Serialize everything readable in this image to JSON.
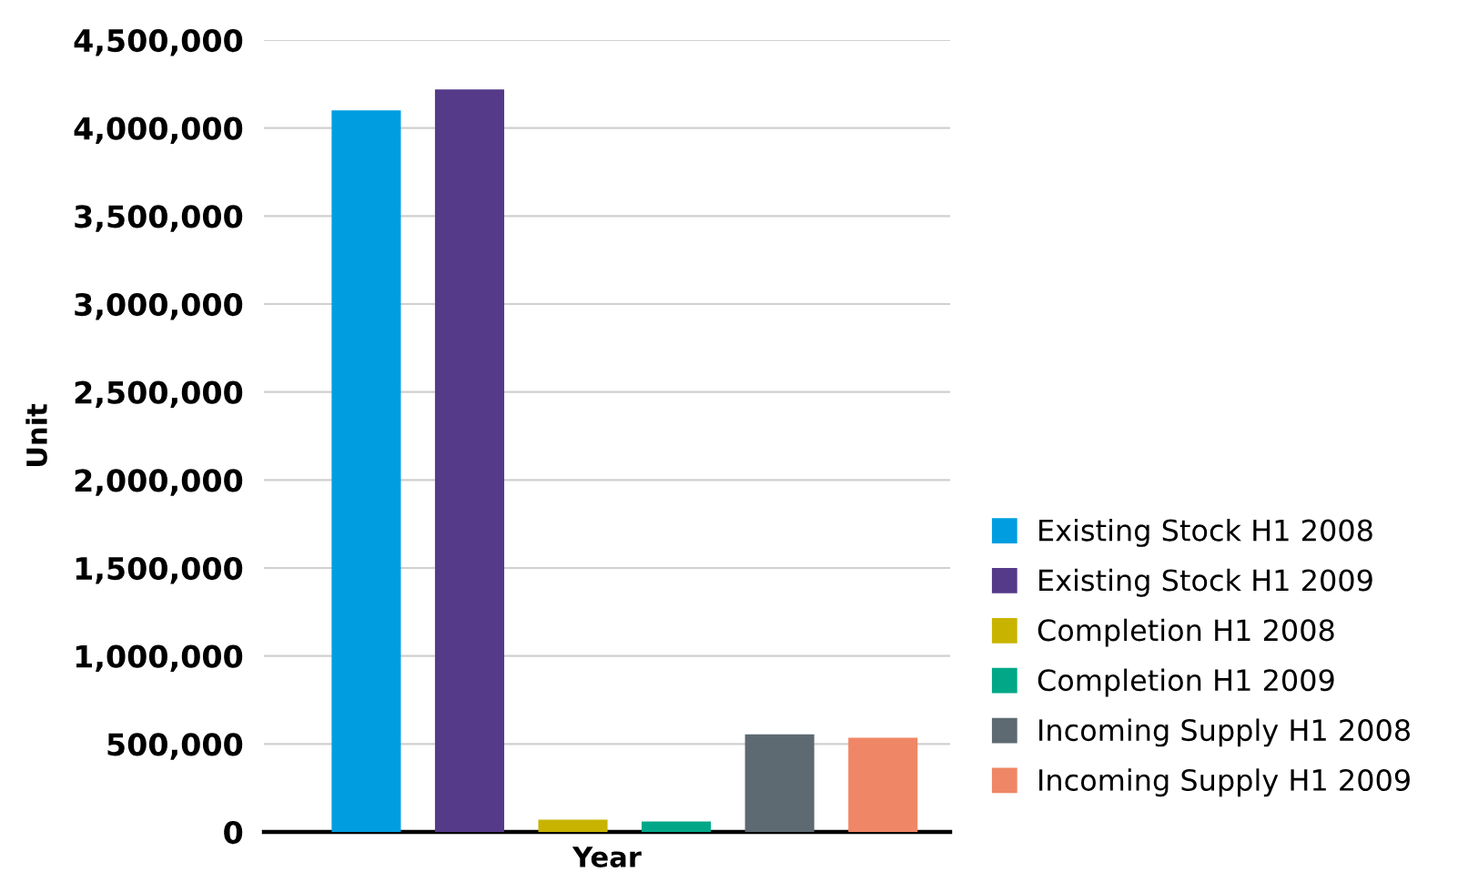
{
  "chart_data": {
    "type": "bar",
    "xlabel": "Year",
    "ylabel": "Unit",
    "categories": [
      null
    ],
    "series": [
      {
        "name": "Existing Stock H1 2008",
        "color": "#009ee0",
        "values": [
          4100000
        ]
      },
      {
        "name": "Existing Stock H1 2009",
        "color": "#553a8a",
        "values": [
          4220000
        ]
      },
      {
        "name": "Completion H1 2008",
        "color": "#c8b400",
        "values": [
          70000
        ]
      },
      {
        "name": "Completion H1 2009",
        "color": "#00a887",
        "values": [
          60000
        ]
      },
      {
        "name": "Incoming Supply H1 2008",
        "color": "#5d6a71",
        "values": [
          555000
        ]
      },
      {
        "name": "Incoming Supply H1 2009",
        "color": "#ef8766",
        "values": [
          535000
        ]
      }
    ],
    "ylim": [
      0,
      4500000
    ],
    "yticks": [
      {
        "value": 0,
        "label": "0"
      },
      {
        "value": 500000,
        "label": "500,000"
      },
      {
        "value": 1000000,
        "label": "1,000,000"
      },
      {
        "value": 1500000,
        "label": "1,500,000"
      },
      {
        "value": 2000000,
        "label": "2,000,000"
      },
      {
        "value": 2500000,
        "label": "2,500,000"
      },
      {
        "value": 3000000,
        "label": "3,000,000"
      },
      {
        "value": 3500000,
        "label": "3,500,000"
      },
      {
        "value": 4000000,
        "label": "4,000,000"
      },
      {
        "value": 4500000,
        "label": "4,500,000"
      }
    ],
    "grid": "y",
    "legend": "right",
    "marker": "square"
  }
}
